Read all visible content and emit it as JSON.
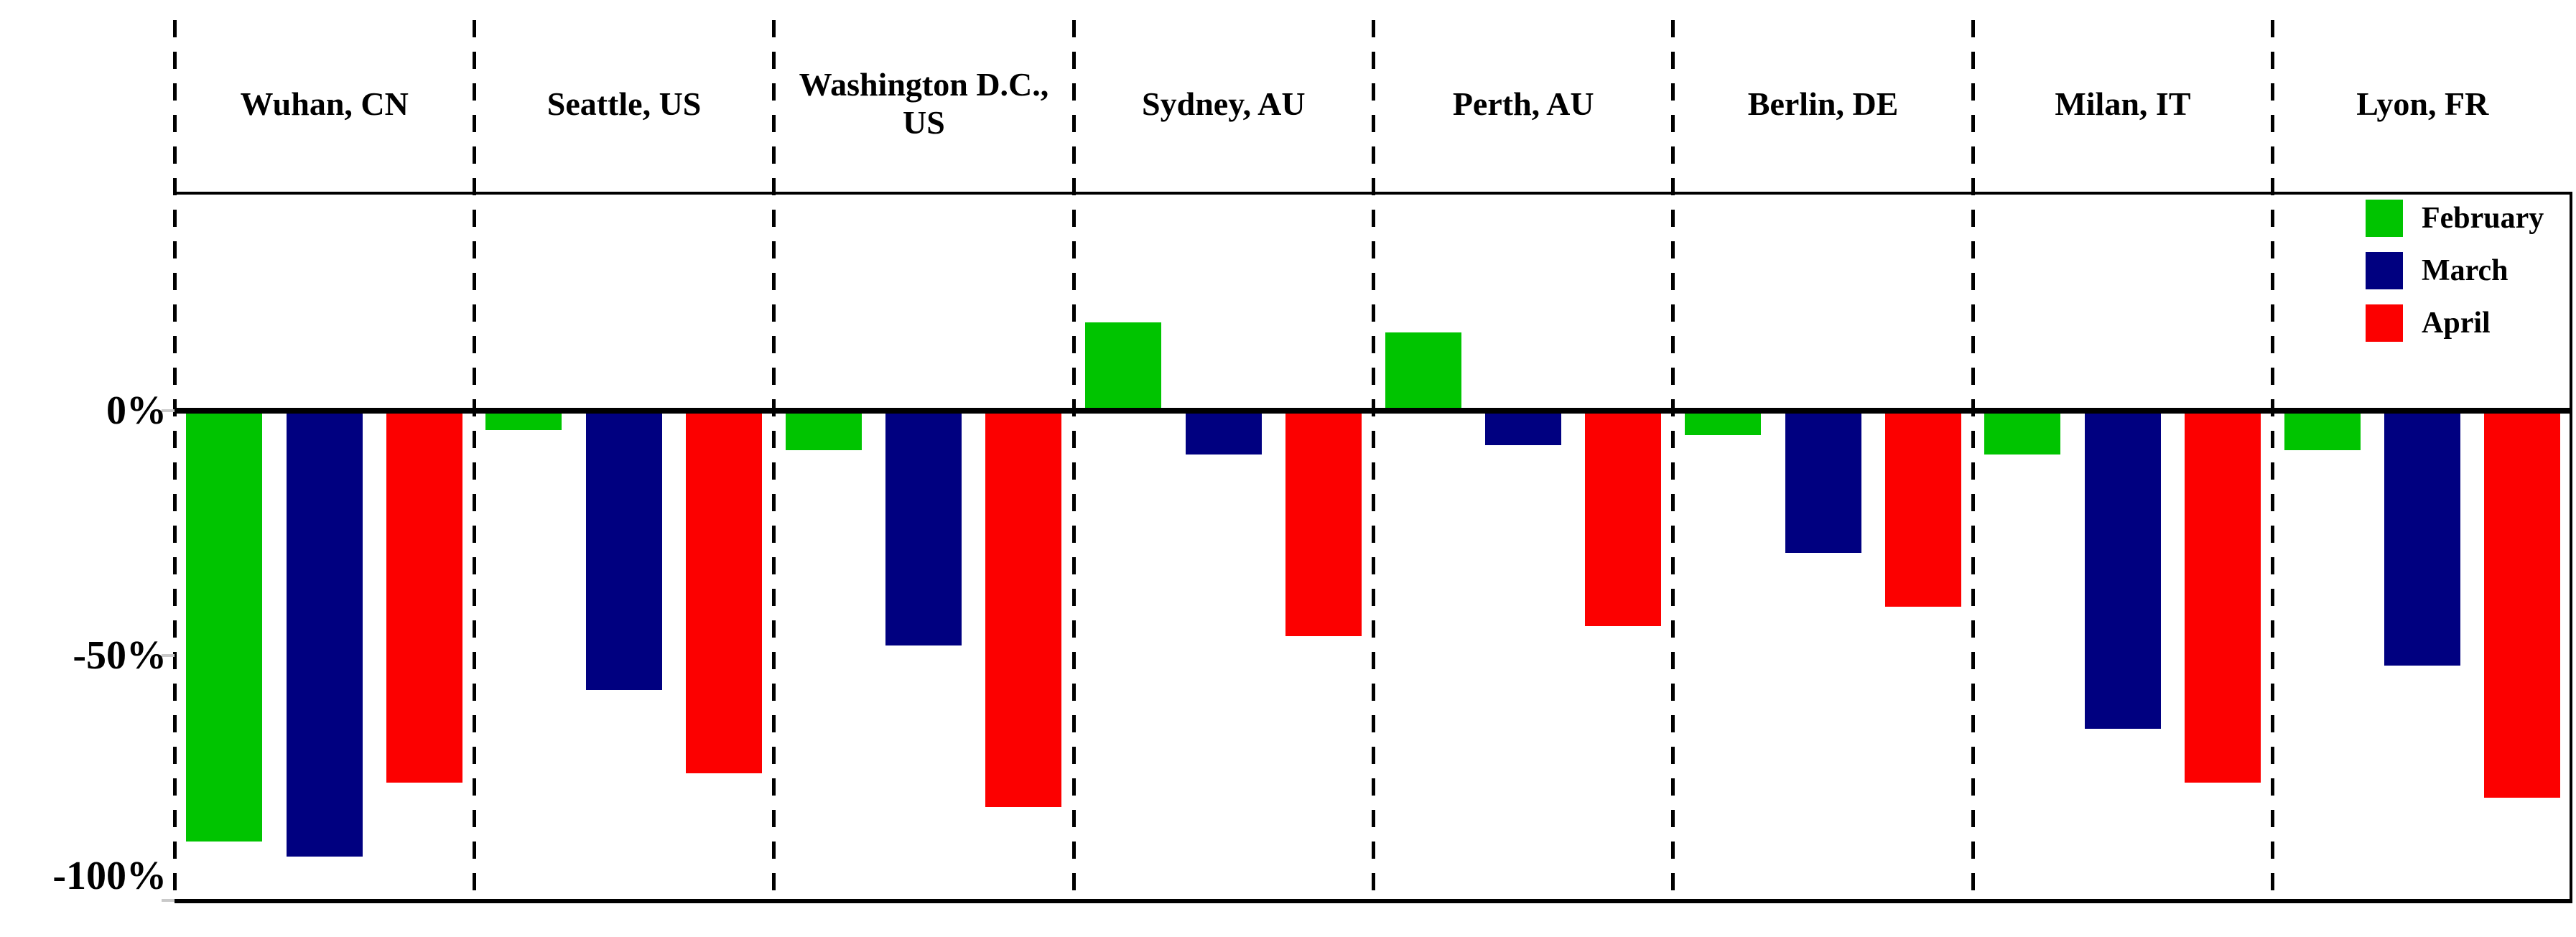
{
  "chart_data": {
    "type": "bar",
    "title": "",
    "xlabel": "",
    "ylabel": "",
    "categories": [
      "Wuhan, CN",
      "Seattle, US",
      "Washington D.C., US",
      "Sydney, AU",
      "Perth, AU",
      "Berlin, DE",
      "Milan, IT",
      "Lyon, FR"
    ],
    "series": [
      {
        "name": "February",
        "color": "#00c400",
        "values": [
          -88,
          -4,
          -8,
          18,
          16,
          -5,
          -9,
          -8
        ]
      },
      {
        "name": "March",
        "color": "#000080",
        "values": [
          -91,
          -57,
          -48,
          -9,
          -7,
          -29,
          -65,
          -52
        ]
      },
      {
        "name": "April",
        "color": "#fc0000",
        "values": [
          -76,
          -74,
          -81,
          -46,
          -44,
          -40,
          -76,
          -79
        ]
      }
    ],
    "unit": "%",
    "ylim": [
      -100,
      45
    ],
    "ytick_values": [
      0,
      -50,
      -100
    ],
    "ytick_labels": [
      "0%",
      "-50%",
      "-100%"
    ],
    "grid": false,
    "legend_position": "top-right",
    "panel_separators": "dashed"
  },
  "legend": {
    "items": [
      {
        "label": "February",
        "color": "#00c400"
      },
      {
        "label": "March",
        "color": "#000080"
      },
      {
        "label": "April",
        "color": "#fc0000"
      }
    ]
  },
  "colors": {
    "axis": "#000000",
    "tick": "#c9c9c9",
    "background": "#ffffff"
  }
}
